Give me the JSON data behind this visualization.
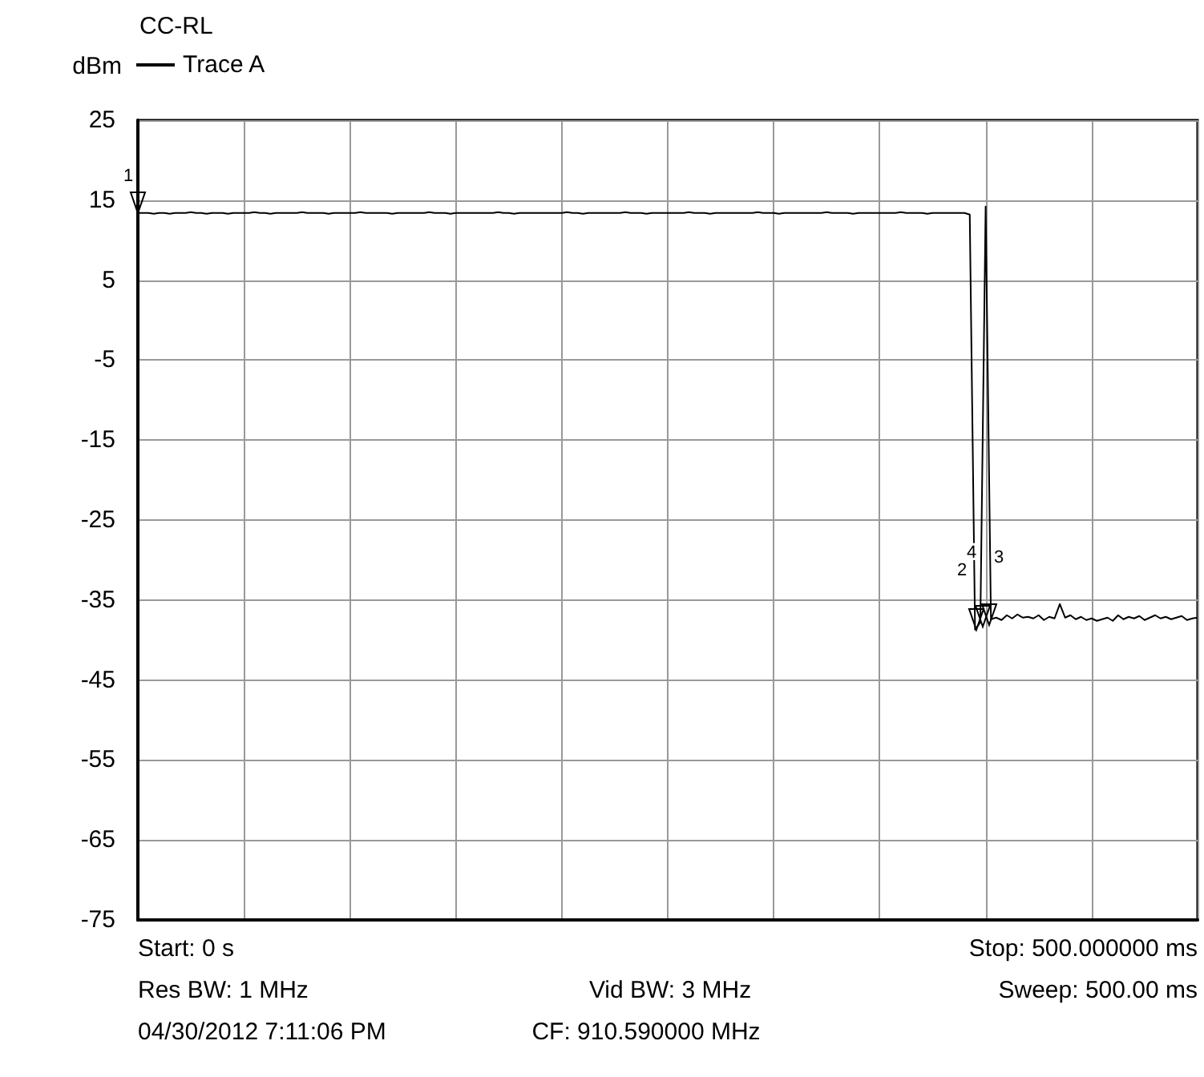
{
  "chart_data": {
    "type": "line",
    "title": "CC-RL",
    "ylabel": "dBm",
    "categories": [
      null,
      null,
      null,
      null,
      null,
      null,
      null,
      null,
      null,
      null,
      null,
      null,
      null,
      null,
      null,
      null,
      null,
      null,
      null,
      null,
      null,
      null,
      null,
      null,
      null,
      null,
      null,
      null,
      null,
      null,
      null,
      null,
      null,
      null,
      null,
      null,
      null,
      null,
      null,
      null,
      null,
      null,
      null,
      null,
      null,
      null,
      null,
      null,
      null,
      null,
      null,
      null,
      null,
      null,
      null,
      null,
      null,
      null,
      null,
      null,
      null,
      null,
      null,
      null,
      null,
      null,
      null,
      null,
      null,
      null,
      null,
      null,
      null,
      null,
      null,
      null,
      null,
      null,
      null,
      null,
      null,
      null,
      null,
      null,
      null,
      null,
      null,
      null,
      null,
      null,
      null,
      null,
      null,
      null,
      null,
      null,
      null,
      null,
      null,
      null,
      null,
      null,
      null,
      null,
      null,
      null,
      null,
      null,
      null,
      null,
      null,
      null,
      null,
      null,
      null,
      null,
      null,
      null,
      null,
      null,
      null,
      null,
      null,
      null,
      null,
      null,
      null,
      null,
      null,
      null,
      null,
      null,
      null,
      null,
      null,
      null,
      null,
      null,
      null,
      null,
      null,
      null,
      null,
      null,
      null,
      null,
      null,
      null,
      null,
      null,
      null,
      null,
      null,
      null,
      null,
      null,
      null,
      null,
      null,
      null,
      null,
      null,
      null,
      null,
      null,
      null,
      null,
      null,
      null,
      null,
      null,
      null,
      null,
      null,
      null,
      null,
      null,
      null,
      null,
      null,
      null,
      null,
      null,
      null,
      null,
      null,
      null,
      null,
      null,
      null,
      null,
      null,
      null,
      null,
      null,
      null,
      null,
      null,
      null,
      null,
      null
    ],
    "series": [
      {
        "name": "Trace A",
        "color": "#000000",
        "values": [
          13.4,
          13.4,
          13.4,
          13.3,
          13.4,
          13.4,
          13.3,
          13.4,
          13.4,
          13.4,
          13.5,
          13.4,
          13.4,
          13.3,
          13.4,
          13.4,
          13.4,
          13.3,
          13.4,
          13.4,
          13.4,
          13.4,
          13.5,
          13.4,
          13.4,
          13.3,
          13.4,
          13.4,
          13.4,
          13.4,
          13.4,
          13.5,
          13.4,
          13.4,
          13.4,
          13.4,
          13.3,
          13.4,
          13.4,
          13.4,
          13.4,
          13.4,
          13.5,
          13.4,
          13.4,
          13.4,
          13.4,
          13.4,
          13.3,
          13.4,
          13.4,
          13.4,
          13.4,
          13.4,
          13.4,
          13.5,
          13.4,
          13.4,
          13.4,
          13.3,
          13.4,
          13.4,
          13.4,
          13.4,
          13.4,
          13.4,
          13.4,
          13.4,
          13.5,
          13.4,
          13.4,
          13.3,
          13.4,
          13.4,
          13.4,
          13.4,
          13.4,
          13.4,
          13.4,
          13.4,
          13.4,
          13.5,
          13.4,
          13.4,
          13.3,
          13.4,
          13.4,
          13.4,
          13.4,
          13.4,
          13.4,
          13.4,
          13.5,
          13.4,
          13.4,
          13.4,
          13.3,
          13.4,
          13.4,
          13.4,
          13.4,
          13.4,
          13.4,
          13.4,
          13.5,
          13.4,
          13.4,
          13.4,
          13.3,
          13.4,
          13.4,
          13.4,
          13.4,
          13.4,
          13.4,
          13.4,
          13.4,
          13.5,
          13.4,
          13.4,
          13.4,
          13.3,
          13.4,
          13.4,
          13.4,
          13.4,
          13.4,
          13.4,
          13.4,
          13.4,
          13.5,
          13.4,
          13.4,
          13.4,
          13.4,
          13.3,
          13.4,
          13.4,
          13.4,
          13.4,
          13.4,
          13.4,
          13.4,
          13.4,
          13.5,
          13.4,
          13.4,
          13.4,
          13.4,
          13.3,
          13.4,
          13.4,
          13.4,
          13.4,
          13.4,
          13.4,
          13.4,
          13.2,
          -38.7,
          -37.8,
          14.2,
          -37.4,
          -37.2,
          -37.5,
          -36.9,
          -37.3,
          -36.8,
          -37.2,
          -37.1,
          -37.3,
          -36.9,
          -37.5,
          -37.1,
          -37.3,
          -35.5,
          -37.2,
          -36.9,
          -37.4,
          -37.1,
          -37.5,
          -37.3,
          -37.6,
          -37.4,
          -37.2,
          -37.6,
          -36.9,
          -37.4,
          -37.1,
          -37.3,
          -37.0,
          -37.5,
          -37.2,
          -36.9,
          -37.3,
          -37.1,
          -37.4,
          -37.2,
          -37.0,
          -37.5,
          -37.3,
          -37.2
        ]
      }
    ],
    "ylim": [
      -75,
      25
    ],
    "yticks": [
      25,
      15,
      5,
      -5,
      -15,
      -25,
      -35,
      -45,
      -55,
      -65,
      -75
    ],
    "tick_labels": "y",
    "grid": true,
    "legend": "top left",
    "line_style": "solid",
    "annotations": [
      "1",
      "2",
      "4",
      "3",
      "Start: 0 s",
      "Stop: 500.000000 ms",
      "Res BW: 1 MHz",
      "Vid BW: 3 MHz",
      "Sweep: 500.00 ms",
      "04/30/2012 7:11:06 PM",
      "CF: 910.590000 MHz"
    ]
  }
}
